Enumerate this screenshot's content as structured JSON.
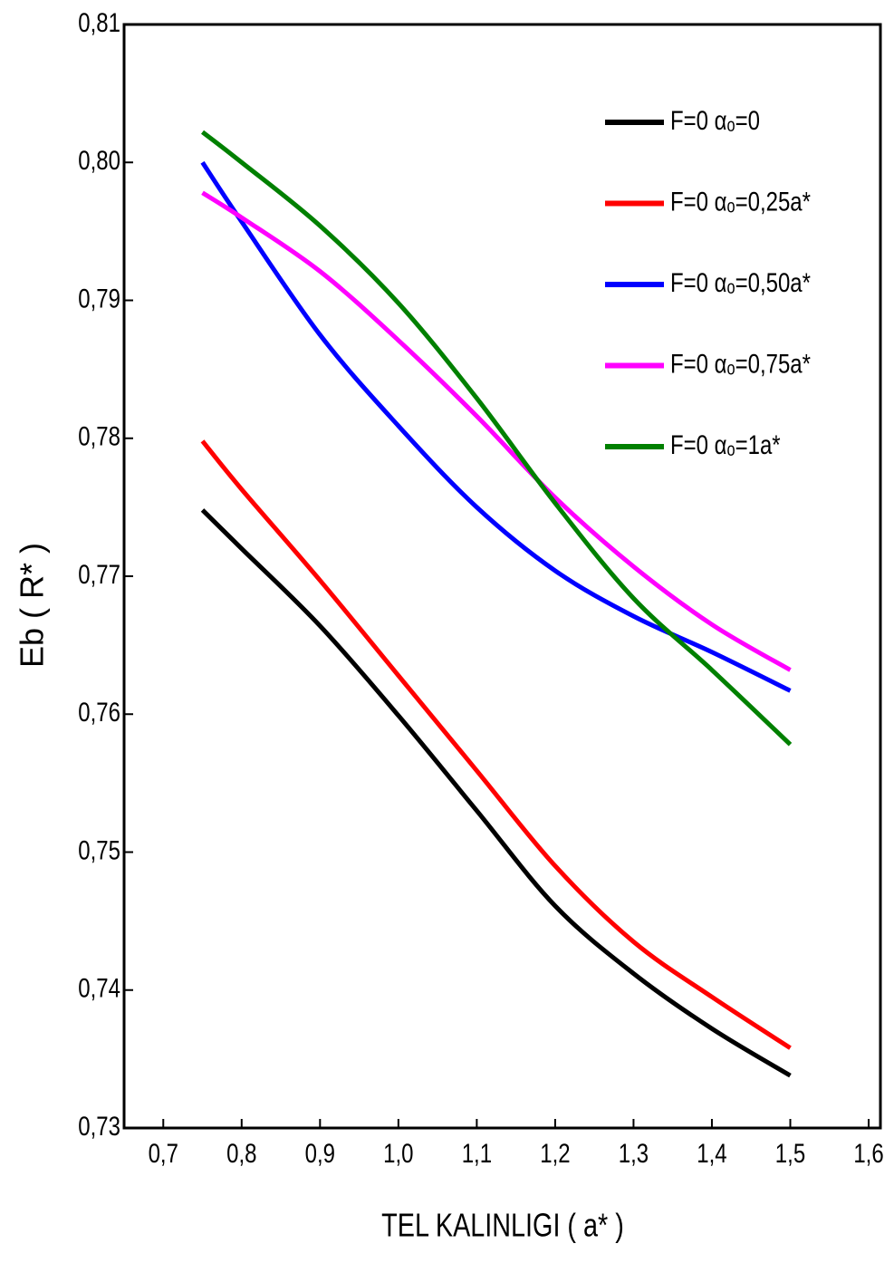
{
  "chart_data": {
    "type": "line",
    "xlabel": "TEL KALINLIGI ( a* )",
    "ylabel": "Eb ( R* )",
    "x": [
      0.75,
      0.8,
      0.9,
      1.0,
      1.1,
      1.2,
      1.3,
      1.4,
      1.5
    ],
    "series": [
      {
        "name": "F=0 αₒ=0",
        "color": "#000000",
        "values": [
          0.7748,
          0.772,
          0.7664,
          0.7599,
          0.753,
          0.7461,
          0.7412,
          0.7372,
          0.7338
        ]
      },
      {
        "name": "F=0 αₒ=0,25a*",
        "color": "#ff0000",
        "values": [
          0.7798,
          0.7763,
          0.7697,
          0.7628,
          0.7559,
          0.749,
          0.7435,
          0.7395,
          0.7358
        ]
      },
      {
        "name": "F=0 αₒ=0,50a*",
        "color": "#0000ff",
        "values": [
          0.8,
          0.7957,
          0.7875,
          0.7809,
          0.775,
          0.7704,
          0.7671,
          0.7645,
          0.7617
        ]
      },
      {
        "name": "F=0 αₒ=0,75a*",
        "color": "#ff00ff",
        "values": [
          0.7978,
          0.796,
          0.7921,
          0.7871,
          0.7816,
          0.7757,
          0.7707,
          0.7665,
          0.7632
        ]
      },
      {
        "name": "F=0 αₒ=1a*",
        "color": "#008000",
        "values": [
          0.8022,
          0.8,
          0.7954,
          0.7898,
          0.7829,
          0.7753,
          0.7684,
          0.7632,
          0.7578
        ]
      }
    ],
    "xlim": [
      0.65,
      1.615
    ],
    "ylim": [
      0.73,
      0.81
    ],
    "xticks": [
      {
        "value": 0.7,
        "label": "0,7"
      },
      {
        "value": 0.8,
        "label": "0,8"
      },
      {
        "value": 0.9,
        "label": "0,9"
      },
      {
        "value": 1.0,
        "label": "1,0"
      },
      {
        "value": 1.1,
        "label": "1,1"
      },
      {
        "value": 1.2,
        "label": "1,2"
      },
      {
        "value": 1.3,
        "label": "1,3"
      },
      {
        "value": 1.4,
        "label": "1,4"
      },
      {
        "value": 1.5,
        "label": "1,5"
      },
      {
        "value": 1.6,
        "label": "1,6"
      }
    ],
    "yticks": [
      {
        "value": 0.73,
        "label": "0,73"
      },
      {
        "value": 0.74,
        "label": "0,74"
      },
      {
        "value": 0.75,
        "label": "0,75"
      },
      {
        "value": 0.76,
        "label": "0,76"
      },
      {
        "value": 0.77,
        "label": "0,77"
      },
      {
        "value": 0.78,
        "label": "0,78"
      },
      {
        "value": 0.79,
        "label": "0,79"
      },
      {
        "value": 0.8,
        "label": "0,80"
      },
      {
        "value": 0.81,
        "label": "0,81"
      }
    ],
    "legend": "upper right"
  }
}
